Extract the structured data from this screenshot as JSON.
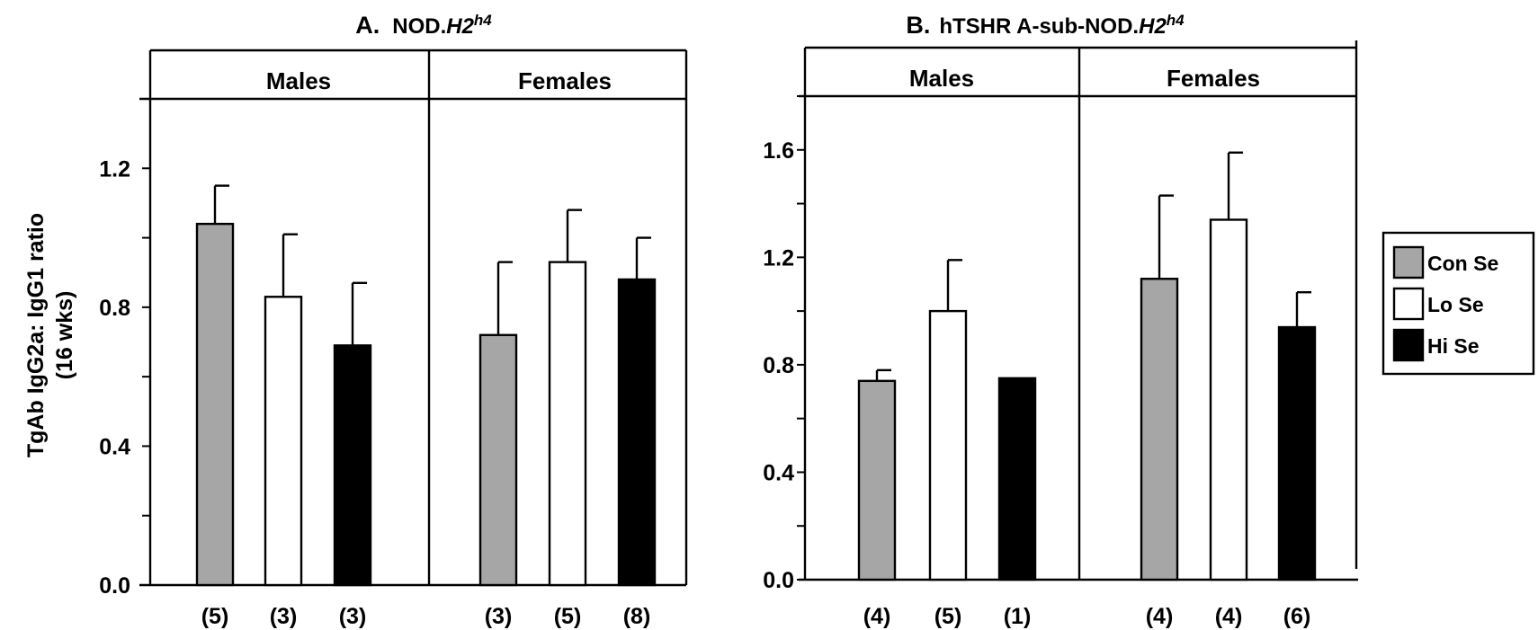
{
  "colors": {
    "Con Se": "#a6a6a6",
    "Lo Se": "#ffffff",
    "Hi Se": "#000000"
  },
  "ylabel": {
    "line1": "TgAb IgG2a: IgG1 ratio",
    "line2": "(16 wks)"
  },
  "legend": {
    "items": [
      "Con Se",
      "Lo Se",
      "Hi Se"
    ]
  },
  "chart_data": [
    {
      "type": "bar",
      "panel_letter": "A.",
      "title_plain": "NOD.",
      "title_italic": "H2",
      "title_sup": "h4",
      "groups": [
        "Males",
        "Females"
      ],
      "series_order": [
        "Con Se",
        "Lo Se",
        "Hi Se"
      ],
      "ylim": [
        0,
        1.4
      ],
      "yticks": [
        "0.0",
        "0.4",
        "0.8",
        "1.2"
      ],
      "ytick_values": [
        0,
        0.4,
        0.8,
        1.2
      ],
      "minor_step": 0.2,
      "legend_position": "right",
      "bars": [
        {
          "group": "Males",
          "series": "Con Se",
          "value": 1.04,
          "error": 0.11,
          "n": "(5)"
        },
        {
          "group": "Males",
          "series": "Lo Se",
          "value": 0.83,
          "error": 0.18,
          "n": "(3)"
        },
        {
          "group": "Males",
          "series": "Hi Se",
          "value": 0.69,
          "error": 0.18,
          "n": "(3)"
        },
        {
          "group": "Females",
          "series": "Con Se",
          "value": 0.72,
          "error": 0.21,
          "n": "(3)"
        },
        {
          "group": "Females",
          "series": "Lo Se",
          "value": 0.93,
          "error": 0.15,
          "n": "(5)"
        },
        {
          "group": "Females",
          "series": "Hi Se",
          "value": 0.88,
          "error": 0.12,
          "n": "(8)"
        }
      ]
    },
    {
      "type": "bar",
      "panel_letter": "B.",
      "title_plain": "hTSHR A-sub-NOD.",
      "title_italic": "H2",
      "title_sup": "h4",
      "groups": [
        "Males",
        "Females"
      ],
      "series_order": [
        "Con Se",
        "Lo Se",
        "Hi Se"
      ],
      "ylim": [
        0,
        1.8
      ],
      "yticks": [
        "0.0",
        "0.4",
        "0.8",
        "1.2",
        "1.6"
      ],
      "ytick_values": [
        0,
        0.4,
        0.8,
        1.2,
        1.6
      ],
      "minor_step": 0.2,
      "bars": [
        {
          "group": "Males",
          "series": "Con Se",
          "value": 0.74,
          "error": 0.04,
          "n": "(4)"
        },
        {
          "group": "Males",
          "series": "Lo Se",
          "value": 1.0,
          "error": 0.19,
          "n": "(5)"
        },
        {
          "group": "Males",
          "series": "Hi Se",
          "value": 0.75,
          "error": null,
          "n": "(1)"
        },
        {
          "group": "Females",
          "series": "Con Se",
          "value": 1.12,
          "error": 0.31,
          "n": "(4)"
        },
        {
          "group": "Females",
          "series": "Lo Se",
          "value": 1.34,
          "error": 0.25,
          "n": "(4)"
        },
        {
          "group": "Females",
          "series": "Hi Se",
          "value": 0.94,
          "error": 0.13,
          "n": "(6)"
        }
      ]
    }
  ]
}
